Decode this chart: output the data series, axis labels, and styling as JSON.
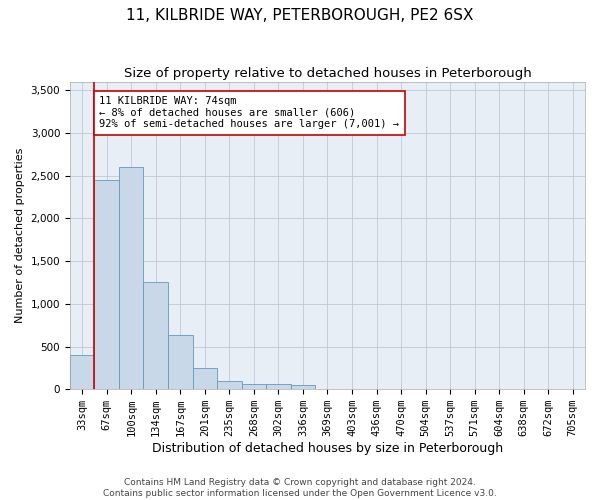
{
  "title": "11, KILBRIDE WAY, PETERBOROUGH, PE2 6SX",
  "subtitle": "Size of property relative to detached houses in Peterborough",
  "xlabel": "Distribution of detached houses by size in Peterborough",
  "ylabel": "Number of detached properties",
  "footer_line1": "Contains HM Land Registry data © Crown copyright and database right 2024.",
  "footer_line2": "Contains public sector information licensed under the Open Government Licence v3.0.",
  "bar_labels": [
    "33sqm",
    "67sqm",
    "100sqm",
    "134sqm",
    "167sqm",
    "201sqm",
    "235sqm",
    "268sqm",
    "302sqm",
    "336sqm",
    "369sqm",
    "403sqm",
    "436sqm",
    "470sqm",
    "504sqm",
    "537sqm",
    "571sqm",
    "604sqm",
    "638sqm",
    "672sqm",
    "705sqm"
  ],
  "bar_values": [
    400,
    2450,
    2600,
    1250,
    630,
    250,
    100,
    65,
    60,
    50,
    0,
    0,
    0,
    0,
    0,
    0,
    0,
    0,
    0,
    0,
    0
  ],
  "bar_color": "#c8d8e8",
  "bar_edgecolor": "#6699bb",
  "ylim": [
    0,
    3600
  ],
  "yticks": [
    0,
    500,
    1000,
    1500,
    2000,
    2500,
    3000,
    3500
  ],
  "vline_x": 1,
  "vline_color": "#cc0000",
  "annotation_text": "11 KILBRIDE WAY: 74sqm\n← 8% of detached houses are smaller (606)\n92% of semi-detached houses are larger (7,001) →",
  "annotation_box_color": "#ffffff",
  "annotation_box_edgecolor": "#cc0000",
  "background_color": "#ffffff",
  "plot_bg_color": "#e8eef5",
  "grid_color": "#c0c8d8",
  "title_fontsize": 11,
  "subtitle_fontsize": 9.5,
  "xlabel_fontsize": 9,
  "ylabel_fontsize": 8,
  "tick_fontsize": 7.5,
  "annotation_fontsize": 7.5,
  "footer_fontsize": 6.5
}
